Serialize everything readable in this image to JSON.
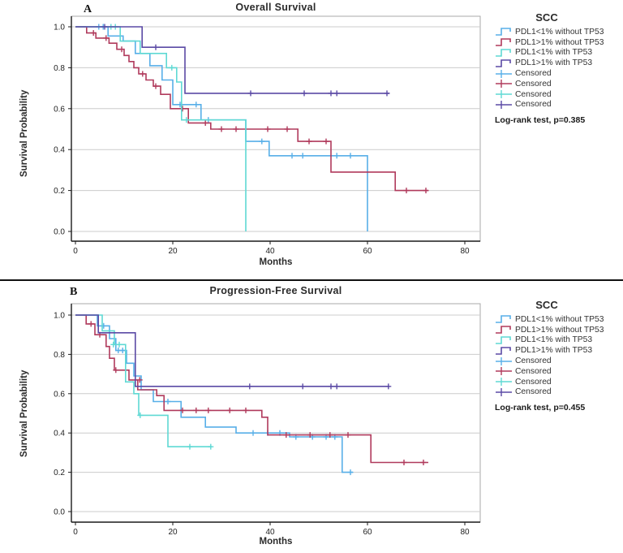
{
  "figure": {
    "panel_labels": [
      "A",
      "B"
    ],
    "xlabel": "Months",
    "ylabel": "Survival Probability",
    "legend_title": "SCC",
    "censored_label": "Censored"
  },
  "colors": {
    "blue": "#58AFE8",
    "red": "#B03A5C",
    "cyan": "#5FD9D4",
    "purple": "#5B4AA5",
    "grid": "#cccccc",
    "frame": "#a8a8a8",
    "axis": "#1a1a1a",
    "text": "#222222"
  },
  "chart_data": [
    {
      "type": "line",
      "subtype": "kaplan-meier-step",
      "panel": "A",
      "title": "Overall Survival",
      "xlabel": "Months",
      "ylabel": "Survival Probability",
      "stat": "Log-rank test, p=0.385",
      "legend_position": "right",
      "grid": "horizontal",
      "xlim": [
        0,
        80
      ],
      "ylim": [
        0.0,
        1.0
      ],
      "xticks": [
        0,
        20,
        40,
        60,
        80
      ],
      "yticks": [
        0.0,
        0.2,
        0.4,
        0.6,
        0.8,
        1.0
      ],
      "series": [
        {
          "name": "PDL1<1% without TP53",
          "color_key": "blue",
          "points": [
            [
              0,
              1
            ],
            [
              6.7,
              1
            ],
            [
              6.7,
              0.955
            ],
            [
              9.8,
              0.955
            ],
            [
              9.8,
              0.93
            ],
            [
              12.3,
              0.93
            ],
            [
              12.3,
              0.87
            ],
            [
              15.3,
              0.87
            ],
            [
              15.3,
              0.81
            ],
            [
              17.8,
              0.81
            ],
            [
              17.8,
              0.74
            ],
            [
              20,
              0.74
            ],
            [
              20,
              0.62
            ],
            [
              25.8,
              0.62
            ],
            [
              25.8,
              0.545
            ],
            [
              35,
              0.545
            ],
            [
              35,
              0.44
            ],
            [
              39.8,
              0.44
            ],
            [
              39.8,
              0.37
            ],
            [
              60,
              0.37
            ],
            [
              60,
              0
            ]
          ],
          "censored": [
            [
              4.8,
              1
            ],
            [
              5.7,
              1
            ],
            [
              21.5,
              0.62
            ],
            [
              24.8,
              0.62
            ],
            [
              27.3,
              0.545
            ],
            [
              38.3,
              0.44
            ],
            [
              44.5,
              0.37
            ],
            [
              46.7,
              0.37
            ],
            [
              53.7,
              0.37
            ],
            [
              56.5,
              0.37
            ]
          ]
        },
        {
          "name": "PDL1>1% without TP53",
          "color_key": "red",
          "points": [
            [
              0,
              1
            ],
            [
              2.3,
              1
            ],
            [
              2.3,
              0.97
            ],
            [
              4.2,
              0.97
            ],
            [
              4.2,
              0.945
            ],
            [
              6.9,
              0.945
            ],
            [
              6.9,
              0.92
            ],
            [
              8.5,
              0.92
            ],
            [
              8.5,
              0.89
            ],
            [
              10,
              0.89
            ],
            [
              10,
              0.86
            ],
            [
              11,
              0.86
            ],
            [
              11,
              0.83
            ],
            [
              12,
              0.83
            ],
            [
              12,
              0.8
            ],
            [
              13,
              0.8
            ],
            [
              13,
              0.77
            ],
            [
              14.5,
              0.77
            ],
            [
              14.5,
              0.74
            ],
            [
              16,
              0.74
            ],
            [
              16,
              0.71
            ],
            [
              17.5,
              0.71
            ],
            [
              17.5,
              0.67
            ],
            [
              19.5,
              0.67
            ],
            [
              19.5,
              0.6
            ],
            [
              23.2,
              0.6
            ],
            [
              23.2,
              0.53
            ],
            [
              27.8,
              0.53
            ],
            [
              27.8,
              0.5
            ],
            [
              45.7,
              0.5
            ],
            [
              45.7,
              0.44
            ],
            [
              52.5,
              0.44
            ],
            [
              52.5,
              0.29
            ],
            [
              65.7,
              0.29
            ],
            [
              65.7,
              0.2
            ],
            [
              72.5,
              0.2
            ]
          ],
          "censored": [
            [
              3.7,
              0.97
            ],
            [
              6.3,
              0.945
            ],
            [
              9.5,
              0.89
            ],
            [
              13.8,
              0.77
            ],
            [
              16.5,
              0.71
            ],
            [
              22,
              0.6
            ],
            [
              26.7,
              0.53
            ],
            [
              30,
              0.5
            ],
            [
              33,
              0.5
            ],
            [
              39.5,
              0.5
            ],
            [
              43.5,
              0.5
            ],
            [
              48,
              0.44
            ],
            [
              51.5,
              0.44
            ],
            [
              68,
              0.2
            ],
            [
              72,
              0.2
            ]
          ]
        },
        {
          "name": "PDL1<1% with TP53",
          "color_key": "cyan",
          "points": [
            [
              0,
              1
            ],
            [
              9.2,
              1
            ],
            [
              9.2,
              0.93
            ],
            [
              13.3,
              0.93
            ],
            [
              13.3,
              0.87
            ],
            [
              18.7,
              0.87
            ],
            [
              18.7,
              0.8
            ],
            [
              20.8,
              0.8
            ],
            [
              20.8,
              0.73
            ],
            [
              21.8,
              0.73
            ],
            [
              21.8,
              0.545
            ],
            [
              35,
              0.545
            ],
            [
              35,
              0
            ]
          ],
          "censored": [
            [
              7.3,
              1
            ],
            [
              8.2,
              1
            ],
            [
              19.8,
              0.8
            ],
            [
              22.8,
              0.545
            ]
          ]
        },
        {
          "name": "PDL1>1% with TP53",
          "color_key": "purple",
          "points": [
            [
              0,
              1
            ],
            [
              13.7,
              1
            ],
            [
              13.7,
              0.9
            ],
            [
              22.5,
              0.9
            ],
            [
              22.5,
              0.675
            ],
            [
              64.5,
              0.675
            ]
          ],
          "censored": [
            [
              6,
              1
            ],
            [
              16.5,
              0.9
            ],
            [
              36,
              0.675
            ],
            [
              47,
              0.675
            ],
            [
              52.5,
              0.675
            ],
            [
              53.7,
              0.675
            ],
            [
              64,
              0.675
            ]
          ]
        }
      ]
    },
    {
      "type": "line",
      "subtype": "kaplan-meier-step",
      "panel": "B",
      "title": "Progression-Free Survival",
      "xlabel": "Months",
      "ylabel": "Survival Probability",
      "stat": "Log-rank test, p=0.455",
      "legend_position": "right",
      "grid": "horizontal",
      "xlim": [
        0,
        80
      ],
      "ylim": [
        0.0,
        1.0
      ],
      "xticks": [
        0,
        20,
        40,
        60,
        80
      ],
      "yticks": [
        0.0,
        0.2,
        0.4,
        0.6,
        0.8,
        1.0
      ],
      "series": [
        {
          "name": "PDL1<1% without TP53",
          "color_key": "blue",
          "points": [
            [
              0,
              1
            ],
            [
              4.5,
              1
            ],
            [
              4.5,
              0.945
            ],
            [
              7,
              0.945
            ],
            [
              7,
              0.88
            ],
            [
              8.3,
              0.88
            ],
            [
              8.3,
              0.82
            ],
            [
              10.5,
              0.82
            ],
            [
              10.5,
              0.755
            ],
            [
              12,
              0.755
            ],
            [
              12,
              0.69
            ],
            [
              13.5,
              0.69
            ],
            [
              13.5,
              0.62
            ],
            [
              16,
              0.62
            ],
            [
              16,
              0.56
            ],
            [
              21.7,
              0.56
            ],
            [
              21.7,
              0.48
            ],
            [
              26.7,
              0.48
            ],
            [
              26.7,
              0.43
            ],
            [
              33,
              0.43
            ],
            [
              33,
              0.4
            ],
            [
              44,
              0.4
            ],
            [
              44,
              0.38
            ],
            [
              54.8,
              0.38
            ],
            [
              54.8,
              0.2
            ],
            [
              57,
              0.2
            ]
          ],
          "censored": [
            [
              5.8,
              0.945
            ],
            [
              8.8,
              0.82
            ],
            [
              9.7,
              0.82
            ],
            [
              19,
              0.56
            ],
            [
              36.5,
              0.4
            ],
            [
              39.5,
              0.4
            ],
            [
              42,
              0.4
            ],
            [
              45.3,
              0.38
            ],
            [
              48.7,
              0.38
            ],
            [
              51.5,
              0.38
            ],
            [
              53.3,
              0.38
            ],
            [
              56.5,
              0.2
            ]
          ]
        },
        {
          "name": "PDL1>1% without TP53",
          "color_key": "red",
          "points": [
            [
              0,
              1
            ],
            [
              2.2,
              1
            ],
            [
              2.2,
              0.955
            ],
            [
              4,
              0.955
            ],
            [
              4,
              0.9
            ],
            [
              6.3,
              0.9
            ],
            [
              6.3,
              0.84
            ],
            [
              7,
              0.84
            ],
            [
              7,
              0.78
            ],
            [
              8,
              0.78
            ],
            [
              8,
              0.72
            ],
            [
              11,
              0.72
            ],
            [
              11,
              0.67
            ],
            [
              12.8,
              0.67
            ],
            [
              12.8,
              0.62
            ],
            [
              16.7,
              0.62
            ],
            [
              16.7,
              0.59
            ],
            [
              18.2,
              0.59
            ],
            [
              18.2,
              0.515
            ],
            [
              38.3,
              0.515
            ],
            [
              38.3,
              0.48
            ],
            [
              39.5,
              0.48
            ],
            [
              39.5,
              0.39
            ],
            [
              60.7,
              0.39
            ],
            [
              60.7,
              0.25
            ],
            [
              72.5,
              0.25
            ]
          ],
          "censored": [
            [
              3.2,
              0.955
            ],
            [
              5,
              0.9
            ],
            [
              8.3,
              0.72
            ],
            [
              13.2,
              0.67
            ],
            [
              22,
              0.515
            ],
            [
              24.8,
              0.515
            ],
            [
              27.3,
              0.515
            ],
            [
              31.7,
              0.515
            ],
            [
              35,
              0.515
            ],
            [
              43.3,
              0.39
            ],
            [
              48.2,
              0.39
            ],
            [
              52.3,
              0.39
            ],
            [
              56,
              0.39
            ],
            [
              67.5,
              0.25
            ],
            [
              71.5,
              0.25
            ]
          ]
        },
        {
          "name": "PDL1<1% with TP53",
          "color_key": "cyan",
          "points": [
            [
              0,
              1
            ],
            [
              5.5,
              1
            ],
            [
              5.5,
              0.92
            ],
            [
              8,
              0.92
            ],
            [
              8,
              0.85
            ],
            [
              10.3,
              0.85
            ],
            [
              10.3,
              0.66
            ],
            [
              12,
              0.66
            ],
            [
              12,
              0.6
            ],
            [
              13,
              0.6
            ],
            [
              13,
              0.49
            ],
            [
              19,
              0.49
            ],
            [
              19,
              0.33
            ],
            [
              28,
              0.33
            ]
          ],
          "censored": [
            [
              7.8,
              0.85
            ],
            [
              9,
              0.85
            ],
            [
              13.3,
              0.49
            ],
            [
              23.5,
              0.33
            ],
            [
              27.8,
              0.33
            ]
          ]
        },
        {
          "name": "PDL1>1% with TP53",
          "color_key": "purple",
          "points": [
            [
              0,
              1
            ],
            [
              4.7,
              1
            ],
            [
              4.7,
              0.91
            ],
            [
              12.3,
              0.91
            ],
            [
              12.3,
              0.637
            ],
            [
              64.5,
              0.637
            ]
          ],
          "censored": [
            [
              35.8,
              0.637
            ],
            [
              46.7,
              0.637
            ],
            [
              52.5,
              0.637
            ],
            [
              53.7,
              0.637
            ],
            [
              64.3,
              0.637
            ]
          ]
        }
      ]
    }
  ]
}
